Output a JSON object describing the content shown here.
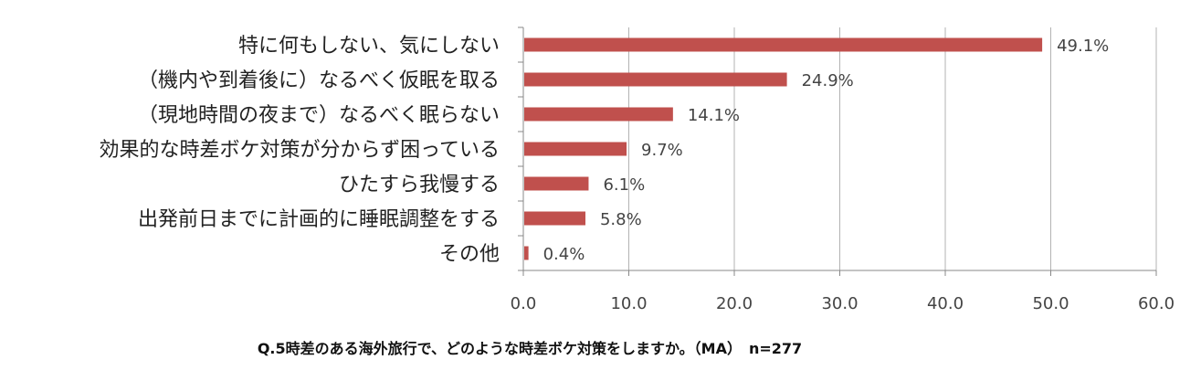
{
  "chart_data": {
    "type": "bar",
    "orientation": "horizontal",
    "categories": [
      "特に何もしない、気にしない",
      "（機内や到着後に）なるべく仮眠を取る",
      "（現地時間の夜まで）なるべく眠らない",
      "効果的な時差ボケ対策が分からず困っている",
      "ひたすら我慢する",
      "出発前日までに計画的に睡眠調整をする",
      "その他"
    ],
    "values": [
      49.1,
      24.9,
      14.1,
      9.7,
      6.1,
      5.8,
      0.4
    ],
    "value_labels": [
      "49.1%",
      "24.9%",
      "14.1%",
      "9.7%",
      "6.1%",
      "5.8%",
      "0.4%"
    ],
    "xlim": [
      0,
      60
    ],
    "ticks": [
      "0.0",
      "10.0",
      "20.0",
      "30.0",
      "40.0",
      "50.0",
      "60.0"
    ],
    "grid": "vertical",
    "legend": "none",
    "bar_color": "#c0504d"
  },
  "caption": "Q.5時差のある海外旅行で、どのような時差ボケ対策をしますか。（MA）　n=277"
}
